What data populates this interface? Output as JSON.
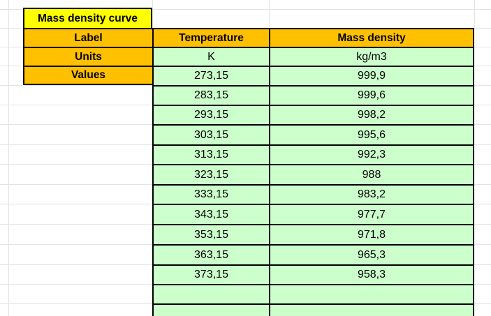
{
  "colors": {
    "title_bg": "#FFFF00",
    "header_bg": "#FFC000",
    "data_cell_bg": "#CCFFCC",
    "cell_border": "#000000",
    "gridline": "#E3E3E3",
    "sheet_bg": "#FFFFFF",
    "text": "#000000"
  },
  "table": {
    "title": "Mass density curve",
    "label_row_header": "Label",
    "units_row_header": "Units",
    "values_row_header": "Values",
    "series": [
      {
        "label": "Temperature",
        "unit": "K",
        "values": [
          "273,15",
          "283,15",
          "293,15",
          "303,15",
          "313,15",
          "323,15",
          "333,15",
          "343,15",
          "353,15",
          "363,15",
          "373,15"
        ]
      },
      {
        "label": "Mass density",
        "unit": "kg/m3",
        "values": [
          "999,9",
          "999,6",
          "998,2",
          "995,6",
          "992,3",
          "988",
          "983,2",
          "977,7",
          "971,8",
          "965,3",
          "958,3"
        ]
      }
    ],
    "trailing_empty_rows": 2
  }
}
